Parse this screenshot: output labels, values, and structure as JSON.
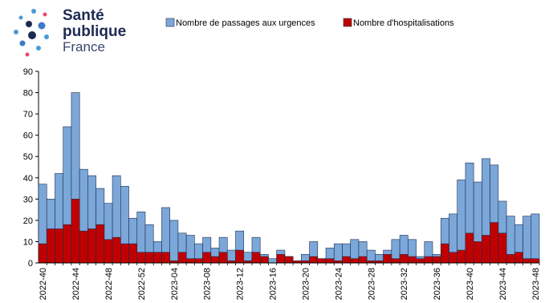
{
  "logo": {
    "line1": "Santé",
    "line2": "publique",
    "line3": "France"
  },
  "chart_data": {
    "type": "bar",
    "stacking": "overlay",
    "grid": false,
    "legend_position": "top",
    "ylim": [
      0,
      90
    ],
    "yticks": [
      0,
      10,
      20,
      30,
      40,
      50,
      60,
      70,
      80,
      90
    ],
    "tick_labels": [
      "2022-40",
      "2022-44",
      "2022-48",
      "2022-52",
      "2023-04",
      "2023-08",
      "2023-12",
      "2023-16",
      "2023-20",
      "2023-24",
      "2023-28",
      "2023-32",
      "2023-36",
      "2023-40",
      "2023-44",
      "2023-48"
    ],
    "colors": {
      "urgences": "#7ba7d9",
      "hospitalisations": "#c00000",
      "edge": "#1f2d4d"
    },
    "categories": [
      "2022-40",
      "2022-41",
      "2022-42",
      "2022-43",
      "2022-44",
      "2022-45",
      "2022-46",
      "2022-47",
      "2022-48",
      "2022-49",
      "2022-50",
      "2022-51",
      "2022-52",
      "2023-01",
      "2023-02",
      "2023-03",
      "2023-04",
      "2023-05",
      "2023-06",
      "2023-07",
      "2023-08",
      "2023-09",
      "2023-10",
      "2023-11",
      "2023-12",
      "2023-13",
      "2023-14",
      "2023-15",
      "2023-16",
      "2023-17",
      "2023-18",
      "2023-19",
      "2023-20",
      "2023-21",
      "2023-22",
      "2023-23",
      "2023-24",
      "2023-25",
      "2023-26",
      "2023-27",
      "2023-28",
      "2023-29",
      "2023-30",
      "2023-31",
      "2023-32",
      "2023-33",
      "2023-34",
      "2023-35",
      "2023-36",
      "2023-37",
      "2023-38",
      "2023-39",
      "2023-40",
      "2023-41",
      "2023-42",
      "2023-43",
      "2023-44",
      "2023-45",
      "2023-46",
      "2023-47",
      "2023-48"
    ],
    "series": [
      {
        "name": "Nombre de passages aux urgences",
        "key": "urgences",
        "values": [
          37,
          30,
          42,
          64,
          80,
          44,
          41,
          35,
          28,
          41,
          36,
          21,
          24,
          18,
          10,
          26,
          20,
          14,
          13,
          9,
          12,
          7,
          12,
          6,
          15,
          5,
          12,
          4,
          2,
          6,
          3,
          1,
          4,
          10,
          2,
          7,
          9,
          9,
          11,
          10,
          6,
          4,
          6,
          11,
          13,
          11,
          3,
          10,
          4,
          21,
          23,
          39,
          47,
          38,
          49,
          46,
          29,
          22,
          18,
          22,
          23
        ]
      },
      {
        "name": "Nombre d'hospitalisations",
        "key": "hospitalisations",
        "values": [
          9,
          16,
          16,
          18,
          30,
          15,
          16,
          18,
          11,
          12,
          9,
          9,
          5,
          5,
          5,
          5,
          1,
          5,
          2,
          2,
          5,
          3,
          5,
          1,
          6,
          1,
          5,
          3,
          0,
          4,
          3,
          1,
          1,
          3,
          2,
          2,
          1,
          3,
          2,
          3,
          1,
          1,
          4,
          2,
          4,
          3,
          2,
          3,
          3,
          9,
          5,
          6,
          14,
          10,
          13,
          19,
          14,
          4,
          5,
          2,
          2
        ]
      }
    ]
  }
}
